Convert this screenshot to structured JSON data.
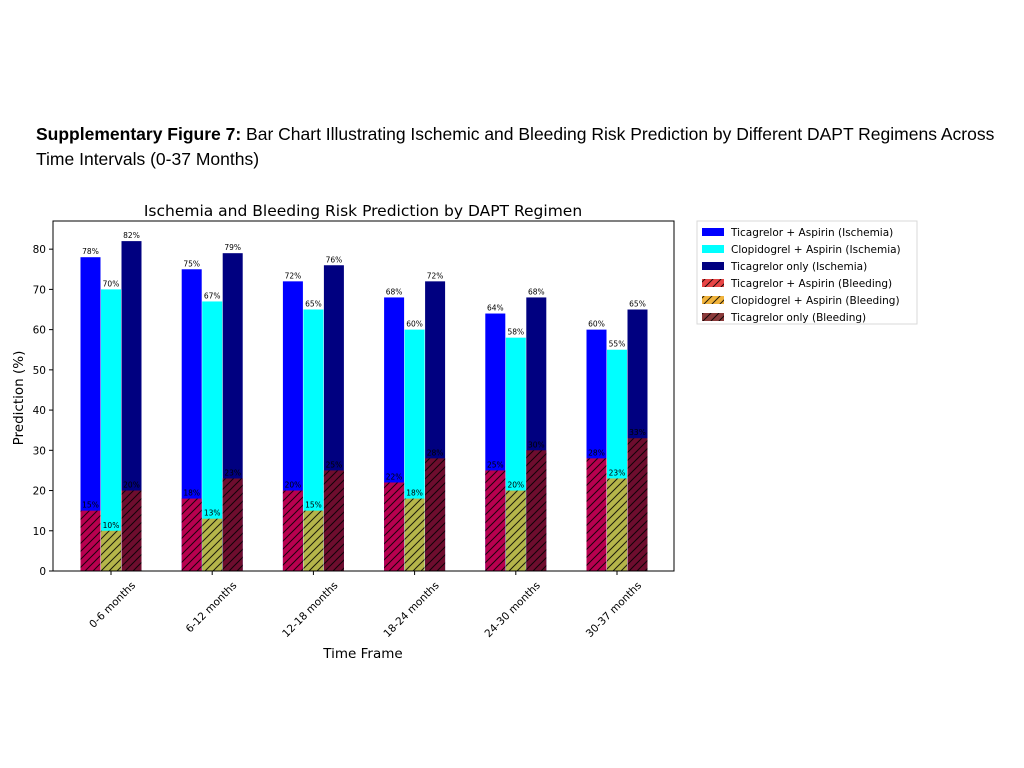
{
  "caption": {
    "label": "Supplementary Figure 7:",
    "text": " Bar Chart Illustrating Ischemic and Bleeding Risk Prediction by Different DAPT Regimens Across Time Intervals (0-37 Months)"
  },
  "colors": {
    "ticagrelor_aspirin_ischemia": "#0000ff",
    "clopidogrel_aspirin_ischemia": "#00ffff",
    "ticagrelor_only_ischemia": "#000080",
    "ticagrelor_aspirin_bleeding": "#b8004f",
    "clopidogrel_aspirin_bleeding": "#b5b54a",
    "ticagrelor_only_bleeding": "#6e0d2e"
  },
  "chart_data": {
    "type": "bar",
    "title": "Ischemia and Bleeding Risk Prediction by DAPT Regimen",
    "xlabel": "Time Frame",
    "ylabel": "Prediction (%)",
    "ylim": [
      0,
      87
    ],
    "yticks": [
      0,
      10,
      20,
      30,
      40,
      50,
      60,
      70,
      80
    ],
    "grid": false,
    "legend_position": "outside-right",
    "categories": [
      "0-6 months",
      "6-12 months",
      "12-18 months",
      "18-24 months",
      "24-30 months",
      "30-37 months"
    ],
    "series": [
      {
        "name": "Ticagrelor + Aspirin (Ischemia)",
        "values": [
          78,
          75,
          72,
          68,
          64,
          60
        ],
        "labels": [
          "78%",
          "75%",
          "72%",
          "68%",
          "64%",
          "60%"
        ],
        "color": "#0000ff",
        "hatch": false,
        "slot": 0
      },
      {
        "name": "Clopidogrel + Aspirin (Ischemia)",
        "values": [
          70,
          67,
          65,
          60,
          58,
          55
        ],
        "labels": [
          "70%",
          "67%",
          "65%",
          "60%",
          "58%",
          "55%"
        ],
        "color": "#00ffff",
        "hatch": false,
        "slot": 1
      },
      {
        "name": "Ticagrelor only (Ischemia)",
        "values": [
          82,
          79,
          76,
          72,
          68,
          65
        ],
        "labels": [
          "82%",
          "79%",
          "76%",
          "72%",
          "68%",
          "65%"
        ],
        "color": "#000080",
        "hatch": false,
        "slot": 2
      },
      {
        "name": "Ticagrelor + Aspirin (Bleeding)",
        "values": [
          15,
          18,
          20,
          22,
          25,
          28
        ],
        "labels": [
          "15%",
          "18%",
          "20%",
          "22%",
          "25%",
          "28%"
        ],
        "color": "#b8004f",
        "legend_color": "#e84545",
        "hatch": true,
        "slot": 0
      },
      {
        "name": "Clopidogrel + Aspirin (Bleeding)",
        "values": [
          10,
          13,
          15,
          18,
          20,
          23
        ],
        "labels": [
          "10%",
          "13%",
          "15%",
          "18%",
          "20%",
          "23%"
        ],
        "color": "#b5b54a",
        "legend_color": "#f0b33c",
        "hatch": true,
        "slot": 1
      },
      {
        "name": "Ticagrelor only (Bleeding)",
        "values": [
          20,
          23,
          25,
          28,
          30,
          33
        ],
        "labels": [
          "20%",
          "23%",
          "25%",
          "28%",
          "30%",
          "33%"
        ],
        "color": "#6e0d2e",
        "legend_color": "#8a3a3a",
        "hatch": true,
        "slot": 2
      }
    ]
  }
}
